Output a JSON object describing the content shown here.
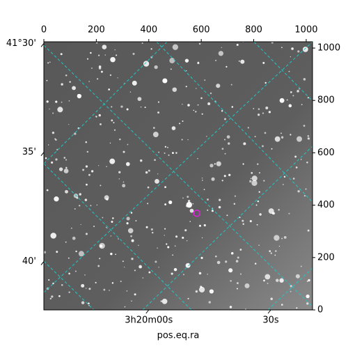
{
  "chart_data": {
    "type": "image",
    "xlabel": "pos.eq.ra",
    "xlim": [
      0,
      1024
    ],
    "ylim": [
      0,
      1024
    ],
    "xticks": [
      0,
      200,
      400,
      600,
      800,
      1000
    ],
    "yticks": [
      0,
      200,
      400,
      600,
      800,
      1000
    ],
    "ra_ticks": [
      {
        "value": 400,
        "label": "3h20m00s"
      },
      {
        "value": 865,
        "label": "30s"
      }
    ],
    "dec_ticks": [
      {
        "value": 1018,
        "label": "41°30'"
      },
      {
        "value": 602,
        "label": "35'"
      },
      {
        "value": 185,
        "label": "40'"
      }
    ],
    "marker": {
      "x": 583,
      "y": 369,
      "color": "#e020e0"
    },
    "grid_color": "#20c8c8"
  }
}
